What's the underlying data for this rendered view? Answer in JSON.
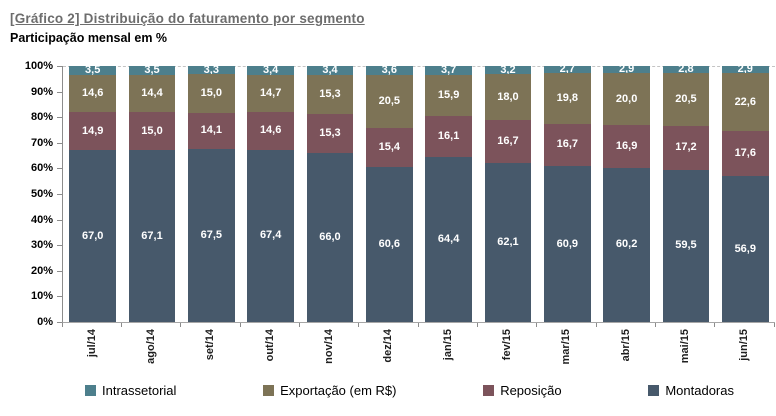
{
  "header": {
    "title": "[Gráfico 2] Distribuição do faturamento por segmento",
    "subtitle": "Participação mensal em %"
  },
  "chart_data": {
    "type": "bar",
    "stacked": true,
    "orientation": "vertical",
    "title": "[Gráfico 2] Distribuição do faturamento por segmento",
    "subtitle": "Participação mensal em %",
    "xlabel": "",
    "ylabel": "",
    "ylim": [
      0,
      100
    ],
    "ytick_step": 10,
    "ytick_labels": [
      "0%",
      "10%",
      "20%",
      "30%",
      "40%",
      "50%",
      "60%",
      "70%",
      "80%",
      "90%",
      "100%"
    ],
    "grid": "dashed line at 100% only",
    "legend_position": "bottom",
    "value_label_format": "decimal comma, one decimal, white bold",
    "categories": [
      "jul/14",
      "ago/14",
      "set/14",
      "out/14",
      "nov/14",
      "dez/14",
      "jan/15",
      "fev/15",
      "mar/15",
      "abr/15",
      "mai/15",
      "jun/15"
    ],
    "series": [
      {
        "name": "Intrassetorial",
        "color": "#4d7f8c",
        "values": [
          3.5,
          3.5,
          3.3,
          3.4,
          3.4,
          3.6,
          3.7,
          3.2,
          2.7,
          2.9,
          2.8,
          2.9
        ]
      },
      {
        "name": "Exportação (em R$)",
        "color": "#7d7356",
        "values": [
          14.6,
          14.4,
          15.0,
          14.7,
          15.3,
          20.5,
          15.9,
          18.0,
          19.8,
          20.0,
          20.5,
          22.6
        ]
      },
      {
        "name": "Reposição",
        "color": "#7c535b",
        "values": [
          14.9,
          15.0,
          14.1,
          14.6,
          15.3,
          15.4,
          16.1,
          16.7,
          16.7,
          16.9,
          17.2,
          17.6
        ]
      },
      {
        "name": "Montadoras",
        "color": "#47596b",
        "values": [
          67.0,
          67.1,
          67.5,
          67.4,
          66.0,
          60.6,
          64.4,
          62.1,
          60.9,
          60.2,
          59.5,
          56.9
        ]
      }
    ],
    "stack_order_bottom_to_top": [
      "Montadoras",
      "Reposição",
      "Exportação (em R$)",
      "Intrassetorial"
    ],
    "colors": {
      "intrassetorial": "#4d7f8c",
      "exportacao": "#7d7356",
      "reposicao": "#7c535b",
      "montadoras": "#47596b",
      "axis_line": "#8c8c8c",
      "gridline_dashed": "#c4c4c4",
      "title_text": "#6d6d6d",
      "value_label_text": "#ffffff"
    }
  }
}
